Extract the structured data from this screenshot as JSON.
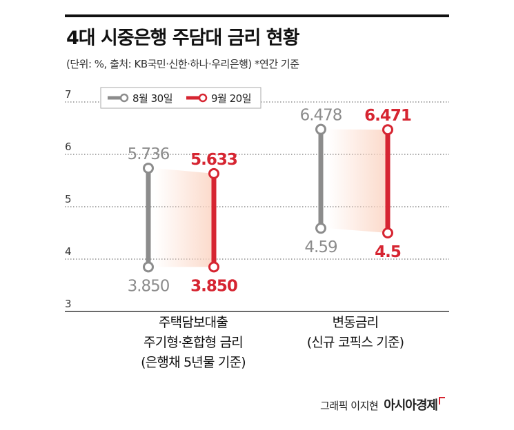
{
  "title": "4대 시중은행 주담대 금리 현황",
  "subtitle": "(단위: %, 출처: KB국민·신한·하나·우리은행) *연간 기준",
  "credit": {
    "name": "그래픽 이지현",
    "brand": "아시아경제"
  },
  "colors": {
    "series_1": "#8c8c8c",
    "series_2": "#d62531",
    "grid": "#555555",
    "shade": "#fbd3c1"
  },
  "chart_data": {
    "type": "dumbbell",
    "ylim": [
      3,
      7
    ],
    "yticks": [
      "3",
      "4",
      "5",
      "6",
      "7"
    ],
    "grid": true,
    "legend": "top-left",
    "categories": [
      {
        "label_lines": [
          "주택담보대출",
          "주기형·혼합형 금리",
          "(은행채 5년물 기준)"
        ]
      },
      {
        "label_lines": [
          "변동금리",
          "(신규 코픽스 기준)"
        ]
      }
    ],
    "series": [
      {
        "name": "8월 30일",
        "ranges": [
          {
            "low": 3.85,
            "high": 5.736,
            "low_label": "3.850",
            "high_label": "5.736"
          },
          {
            "low": 4.59,
            "high": 6.478,
            "low_label": "4.59",
            "high_label": "6.478"
          }
        ]
      },
      {
        "name": "9월 20일",
        "ranges": [
          {
            "low": 3.85,
            "high": 5.633,
            "low_label": "3.850",
            "high_label": "5.633"
          },
          {
            "low": 4.5,
            "high": 6.471,
            "low_label": "4.5",
            "high_label": "6.471"
          }
        ]
      }
    ]
  }
}
